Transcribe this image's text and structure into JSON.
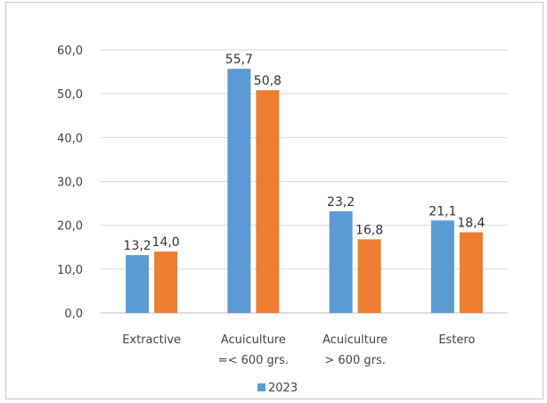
{
  "chart_data": {
    "type": "bar",
    "categories": [
      [
        "Extractive"
      ],
      [
        "Acuiculture",
        "=< 600 grs."
      ],
      [
        "Acuiculture",
        "> 600 grs."
      ],
      [
        "Estero"
      ]
    ],
    "series": [
      {
        "name": "2023",
        "values": [
          13.2,
          55.7,
          23.2,
          21.1
        ],
        "labels": [
          "13,2",
          "55,7",
          "23,2",
          "21,1"
        ],
        "color": "#5b9bd5"
      },
      {
        "values": [
          14.0,
          50.8,
          16.8,
          18.4
        ],
        "labels": [
          "14,0",
          "50,8",
          "16,8",
          "18,4"
        ],
        "color": "#ed7d31"
      }
    ],
    "yticks": [
      "0,0",
      "10,0",
      "20,0",
      "30,0",
      "40,0",
      "50,0",
      "60,0"
    ],
    "ylim": [
      0,
      60
    ],
    "grid": true,
    "legend_position": "bottom",
    "colors": {
      "grid": "#d9d9d9",
      "axis": "#bfbfbf",
      "frame": "#bfc9d6"
    }
  }
}
